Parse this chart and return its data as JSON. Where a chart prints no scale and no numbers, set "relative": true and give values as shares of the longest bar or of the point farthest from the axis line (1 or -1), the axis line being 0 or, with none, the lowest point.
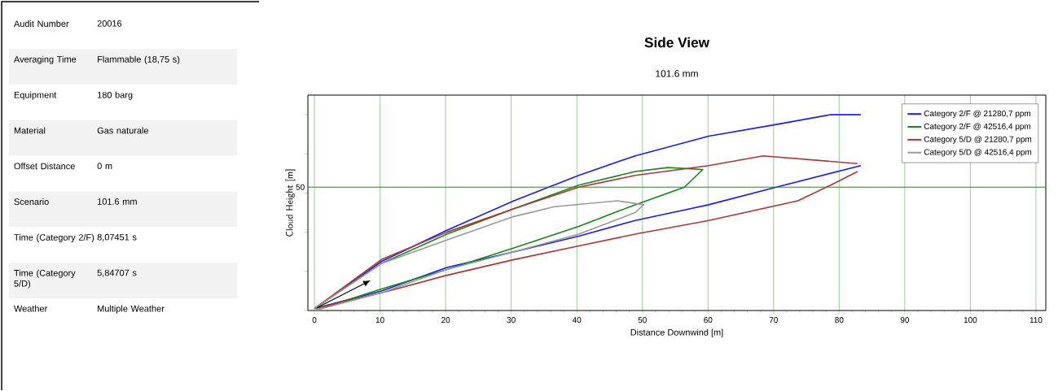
{
  "chart_data": [
    {
      "type": "other",
      "annotations": [
        "Audit Number",
        "20016",
        "Averaging Time",
        "Flammable (18,75 s)",
        "Equipment",
        "180 barg",
        "Material",
        "Gas naturale",
        "Offset Distance",
        "0 m",
        "Scenario",
        "101.6 mm",
        "Time (Category 2/F)",
        "8,07451 s",
        "Time (Category 5/D)",
        "5,84707 s",
        "Weather",
        "Multiple Weather"
      ]
    },
    {
      "type": "line",
      "title": "Side View",
      "subtitle": "101.6 mm",
      "xlabel": "Distance Downwind [m]",
      "ylabel": "Cloud Height [m]",
      "xlim": [
        -1,
        111.5
      ],
      "relative": true,
      "ref_lines": [
        {
          "axis": "y",
          "value": 0.63,
          "color": "#2f7f2f"
        }
      ],
      "annotations": [
        "50"
      ],
      "xticks": [
        0,
        10,
        20,
        30,
        40,
        50,
        60,
        70,
        80,
        90,
        100,
        110
      ],
      "grid": "x",
      "legend": "top right",
      "series": [
        {
          "name": "Category 2/F @ 21280,7 ppm",
          "color": "#1a1aff",
          "x": [
            0,
            10.2,
            20.2,
            30.4,
            40.3,
            48.9,
            60.1,
            70.4,
            78.7,
            83.3,
            null,
            83.3,
            70.4,
            60.1,
            48.9,
            40.3,
            30.4,
            20.2,
            10.2,
            0
          ],
          "values": [
            0.01,
            0.25,
            0.41,
            0.56,
            0.69,
            0.79,
            0.89,
            0.95,
            1,
            1,
            null,
            0.74,
            0.63,
            0.54,
            0.46,
            0.38,
            0.3,
            0.22,
            0.1,
            0.01
          ]
        },
        {
          "name": "Category 2/F @ 42516,4 ppm",
          "color": "#138a13",
          "x": [
            0,
            10.2,
            20.2,
            30.4,
            40.3,
            48.9,
            53.9,
            59.2,
            56.4,
            48.9,
            40.3,
            30.4,
            20.2,
            10.2,
            0
          ],
          "values": [
            0.01,
            0.24,
            0.39,
            0.52,
            0.64,
            0.71,
            0.73,
            0.72,
            0.63,
            0.54,
            0.43,
            0.32,
            0.21,
            0.11,
            0
          ]
        },
        {
          "name": "Category 5/D @ 21280,7 ppm",
          "color": "#b03535",
          "x": [
            0,
            10.2,
            20.2,
            30.4,
            40.3,
            48.9,
            60.1,
            68.4,
            82.8,
            null,
            82.8,
            78.7,
            73.7,
            60.1,
            48.9,
            40.3,
            30.4,
            20.2,
            10.2,
            0
          ],
          "values": [
            0.01,
            0.26,
            0.4,
            0.52,
            0.63,
            0.69,
            0.74,
            0.79,
            0.75,
            null,
            0.71,
            0.64,
            0.56,
            0.46,
            0.39,
            0.33,
            0.26,
            0.18,
            0.09,
            0.01
          ]
        },
        {
          "name": "Category 5/D @ 42516,4 ppm",
          "color": "#999999",
          "x": [
            0,
            10.2,
            20.2,
            30.4,
            36.6,
            46.2,
            50.2,
            48.9,
            40.3,
            30.4,
            20.2,
            10.2,
            0
          ],
          "values": [
            0.01,
            0.24,
            0.36,
            0.48,
            0.53,
            0.56,
            0.54,
            0.5,
            0.39,
            0.3,
            0.21,
            0.09,
            0
          ]
        }
      ]
    }
  ]
}
